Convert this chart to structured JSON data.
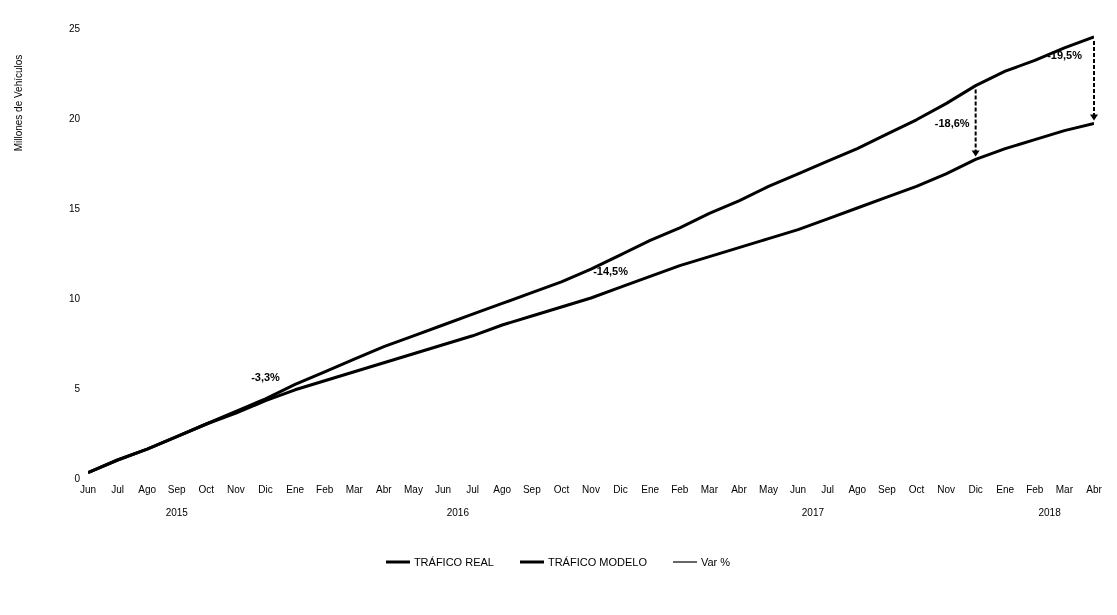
{
  "chart_data": {
    "type": "line",
    "ylabel": "Millones de Vehículos",
    "categories": [
      "Jun",
      "Jul",
      "Ago",
      "Sep",
      "Oct",
      "Nov",
      "Dic",
      "Ene",
      "Feb",
      "Mar",
      "Abr",
      "May",
      "Jun",
      "Jul",
      "Ago",
      "Sep",
      "Oct",
      "Nov",
      "Dic",
      "Ene",
      "Feb",
      "Mar",
      "Abr",
      "May",
      "Jun",
      "Jul",
      "Ago",
      "Sep",
      "Oct",
      "Nov",
      "Dic",
      "Ene",
      "Feb",
      "Mar",
      "Abr"
    ],
    "series": [
      {
        "name": "TRÁFICO REAL",
        "color": "#000000",
        "values": [
          0.3,
          1.0,
          1.6,
          2.3,
          3.0,
          3.6,
          4.3,
          4.9,
          5.4,
          5.9,
          6.4,
          6.9,
          7.4,
          7.9,
          8.5,
          9.0,
          9.5,
          10.0,
          10.6,
          11.2,
          11.8,
          12.3,
          12.8,
          13.3,
          13.8,
          14.4,
          15.0,
          15.6,
          16.2,
          16.9,
          17.7,
          18.3,
          18.8,
          19.3,
          19.7
        ]
      },
      {
        "name": "TRÁFICO MODELO",
        "color": "#000000",
        "values": [
          0.3,
          1.0,
          1.6,
          2.3,
          3.0,
          3.7,
          4.4,
          5.2,
          5.9,
          6.6,
          7.3,
          7.9,
          8.5,
          9.1,
          9.7,
          10.3,
          10.9,
          11.6,
          12.4,
          13.2,
          13.9,
          14.7,
          15.4,
          16.2,
          16.9,
          17.6,
          18.3,
          19.1,
          19.9,
          20.8,
          21.8,
          22.6,
          23.2,
          23.9,
          24.5
        ]
      },
      {
        "name": "Var %",
        "color": "#000000",
        "values": [
          null,
          null,
          null,
          null,
          null,
          null,
          null,
          null,
          null,
          null,
          null,
          null,
          null,
          null,
          null,
          null,
          null,
          null,
          null,
          null,
          null,
          null,
          null,
          null,
          null,
          null,
          null,
          null,
          null,
          null,
          null,
          null,
          null,
          null,
          null
        ]
      }
    ],
    "ylim": [
      0,
      25
    ],
    "yticks": [
      0,
      5,
      10,
      15,
      20,
      25
    ],
    "annotations": [
      "-3,3%",
      "-14,5%",
      "-18,6%",
      "-19,5%",
      "2015",
      "2016",
      "2017",
      "2018"
    ],
    "legend": "bottom",
    "marker": "none",
    "line_style": "solid"
  }
}
